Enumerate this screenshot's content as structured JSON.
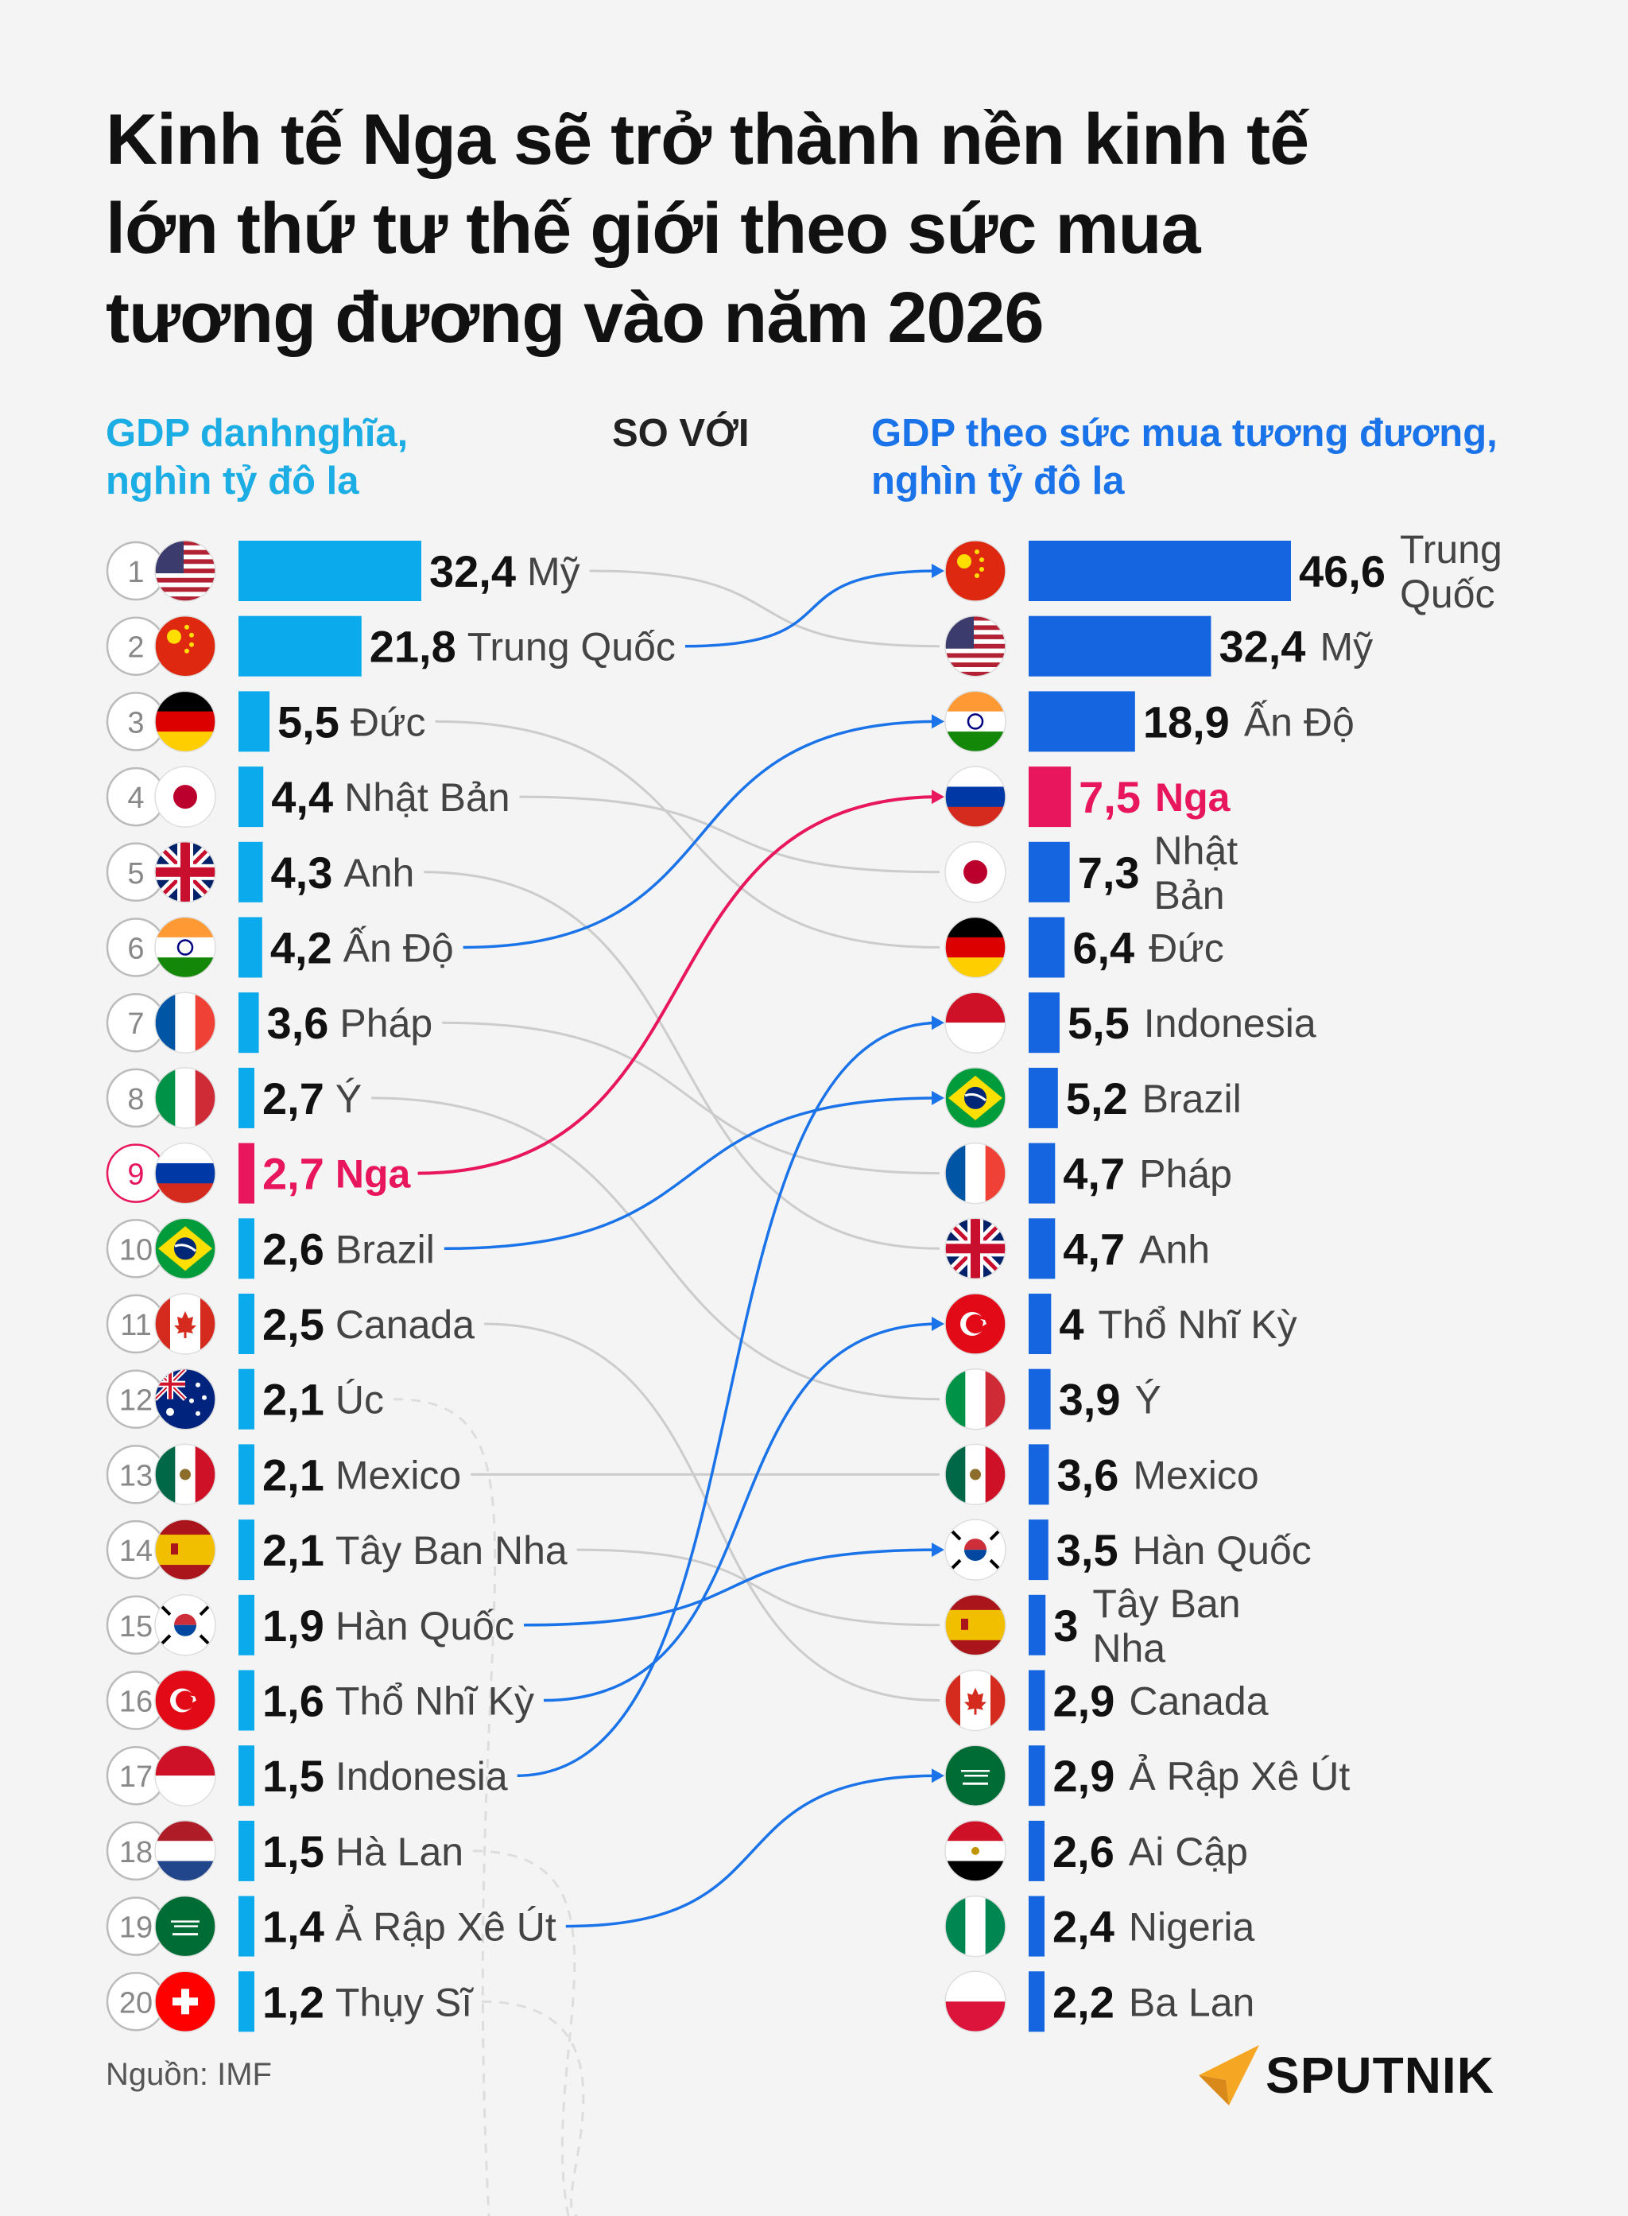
{
  "title": "Kinh tế Nga sẽ trở thành nền kinh tế lớn thứ tư thế giới theo sức mua tương đương vào năm 2026",
  "title_lines": [
    "Kinh tế Nga sẽ trở thành nền kinh tế",
    "lớn thứ tư thế giới theo sức mua",
    "tương đương vào năm 2026"
  ],
  "header_left_lines": [
    "GDP danhnghĩa,",
    "nghìn tỷ đô la"
  ],
  "header_mid": "SO VỚI",
  "header_right_lines": [
    "GDP theo sức mua tương đương,",
    "nghìn tỷ đô la"
  ],
  "source": "Nguồn: IMF",
  "brand": "SPUTNIK",
  "colors": {
    "nominal_bar": "#0aaaec",
    "ppp_bar": "#1565e0",
    "highlight": "#e8175d",
    "grey_link": "#cccccc",
    "blue_link_left": "#1cade4",
    "blue_link_ppp": "#1a73e8"
  },
  "chart_data": [
    {
      "type": "bar",
      "title": "GDP danhnghĩa, nghìn tỷ đô la",
      "orientation": "horizontal",
      "ranks": [
        "1",
        "2",
        "3",
        "4",
        "5",
        "6",
        "7",
        "8",
        "9",
        "10",
        "11",
        "12",
        "13",
        "14",
        "15",
        "16",
        "17",
        "18",
        "19",
        "20"
      ],
      "categories": [
        "Mỹ",
        "Trung Quốc",
        "Đức",
        "Nhật Bản",
        "Anh",
        "Ấn Độ",
        "Pháp",
        "Ý",
        "Nga",
        "Brazil",
        "Canada",
        "Úc",
        "Mexico",
        "Tây Ban Nha",
        "Hàn Quốc",
        "Thổ Nhĩ Kỳ",
        "Indonesia",
        "Hà Lan",
        "Ả Rập Xê Út",
        "Thụy Sĩ"
      ],
      "flags": [
        "us",
        "cn",
        "de",
        "jp",
        "gb",
        "in",
        "fr",
        "it",
        "ru",
        "br",
        "ca",
        "au",
        "mx",
        "es",
        "kr",
        "tr",
        "id",
        "nl",
        "sa",
        "ch"
      ],
      "values": [
        32.4,
        21.8,
        5.5,
        4.4,
        4.3,
        4.2,
        3.6,
        2.7,
        2.7,
        2.6,
        2.5,
        2.1,
        2.1,
        2.1,
        1.9,
        1.6,
        1.5,
        1.5,
        1.4,
        1.2
      ],
      "labels": [
        "32,4",
        "21,8",
        "5,5",
        "4,4",
        "4,3",
        "4,2",
        "3,6",
        "2,7",
        "2,7",
        "2,6",
        "2,5",
        "2,1",
        "2,1",
        "2,1",
        "1,9",
        "1,6",
        "1,5",
        "1,5",
        "1,4",
        "1,2"
      ],
      "highlight": "Nga"
    },
    {
      "type": "bar",
      "title": "GDP theo sức mua tương đương, nghìn tỷ đô la",
      "orientation": "horizontal",
      "categories": [
        "Trung Quốc",
        "Mỹ",
        "Ấn Độ",
        "Nga",
        "Nhật Bản",
        "Đức",
        "Indonesia",
        "Brazil",
        "Pháp",
        "Anh",
        "Thổ Nhĩ Kỳ",
        "Ý",
        "Mexico",
        "Hàn Quốc",
        "Tây Ban Nha",
        "Canada",
        "Ả Rập Xê Út",
        "Ai Cập",
        "Nigeria",
        "Ba Lan"
      ],
      "flags": [
        "cn",
        "us",
        "in",
        "ru",
        "jp",
        "de",
        "id",
        "br",
        "fr",
        "gb",
        "tr",
        "it",
        "mx",
        "kr",
        "es",
        "ca",
        "sa",
        "eg",
        "ng",
        "pl"
      ],
      "values": [
        46.6,
        32.4,
        18.9,
        7.5,
        7.3,
        6.4,
        5.5,
        5.2,
        4.7,
        4.7,
        4,
        3.9,
        3.6,
        3.5,
        3,
        2.9,
        2.9,
        2.6,
        2.4,
        2.2
      ],
      "labels": [
        "46,6",
        "32,4",
        "18,9",
        "7,5",
        "7,3",
        "6,4",
        "5,5",
        "5,2",
        "4,7",
        "4,7",
        "4",
        "3,9",
        "3,6",
        "3,5",
        "3",
        "2,9",
        "2,9",
        "2,6",
        "2,4",
        "2,2"
      ],
      "highlight": "Nga"
    }
  ]
}
